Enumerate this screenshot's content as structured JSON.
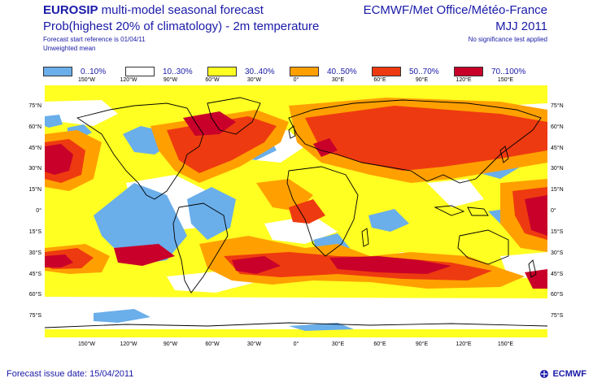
{
  "header": {
    "title_bold": "EUROSIP",
    "title_rest": " multi-model seasonal forecast",
    "subtitle": "Prob(highest 20% of climatology) - 2m temperature",
    "line3": "Forecast start reference is 01/04/11",
    "line4": "Unweighted mean",
    "right_title": "ECMWF/Met Office/Météo-France",
    "right_period": "MJJ 2011",
    "right_note": "No significance test applied"
  },
  "legend": [
    {
      "label": "0..10%",
      "color": "#6aaeea"
    },
    {
      "label": "10..30%",
      "color": "#ffffff"
    },
    {
      "label": "30..40%",
      "color": "#ffff22"
    },
    {
      "label": "40..50%",
      "color": "#ffa000"
    },
    {
      "label": "50..70%",
      "color": "#ee3a10"
    },
    {
      "label": "70..100%",
      "color": "#c8002a"
    }
  ],
  "lon_ticks": [
    "150°W",
    "120°W",
    "90°W",
    "60°W",
    "30°W",
    "0°",
    "30°E",
    "60°E",
    "90°E",
    "120°E",
    "150°E"
  ],
  "lat_ticks": [
    "75°N",
    "60°N",
    "45°N",
    "30°N",
    "15°N",
    "0°",
    "15°S",
    "30°S",
    "45°S",
    "60°S",
    "75°S"
  ],
  "footer": {
    "issue": "Forecast issue date: 15/04/2011",
    "logo_text": "ECMWF",
    "logo_icon": "ecmwf-logo-icon"
  },
  "colors": {
    "text": "#1a1aa8",
    "coast": "#000000"
  }
}
